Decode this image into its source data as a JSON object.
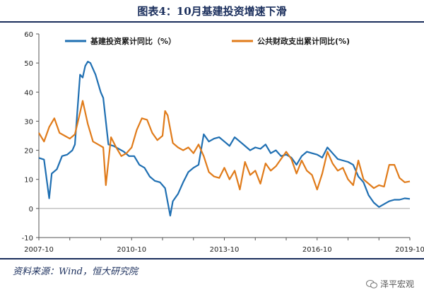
{
  "header": {
    "title": "图表4：10月基建投资增速下滑"
  },
  "footer": {
    "source": "资料来源：Wind，恒大研究院",
    "watermark": "泽平宏观"
  },
  "colors": {
    "series_blue": "#1f6fb2",
    "series_orange": "#e07b1a",
    "frame": "#1a2e5c"
  },
  "chart_data": {
    "type": "line",
    "ylim": [
      -10,
      60
    ],
    "yticks": [
      -10,
      0,
      10,
      20,
      30,
      40,
      50,
      60
    ],
    "xtick_labels": [
      "2007-10",
      "2010-10",
      "2013-10",
      "2016-10",
      "2019-10"
    ],
    "x_range": [
      "2007-10",
      "2019-10"
    ],
    "series": [
      {
        "name": "基建投资累计同比（%）",
        "points": [
          [
            "2007-10",
            17.4
          ],
          [
            "2007-12",
            16.8
          ],
          [
            "2008-02",
            3.5
          ],
          [
            "2008-03",
            12.0
          ],
          [
            "2008-05",
            13.5
          ],
          [
            "2008-07",
            18.0
          ],
          [
            "2008-09",
            18.5
          ],
          [
            "2008-11",
            20.0
          ],
          [
            "2008-12",
            22.0
          ],
          [
            "2009-02",
            46.0
          ],
          [
            "2009-03",
            45.0
          ],
          [
            "2009-04",
            49.0
          ],
          [
            "2009-05",
            50.5
          ],
          [
            "2009-06",
            50.0
          ],
          [
            "2009-08",
            46.0
          ],
          [
            "2009-10",
            40.0
          ],
          [
            "2009-11",
            38.0
          ],
          [
            "2010-01",
            22.0
          ],
          [
            "2010-03",
            21.5
          ],
          [
            "2010-05",
            20.5
          ],
          [
            "2010-07",
            19.5
          ],
          [
            "2010-09",
            18.0
          ],
          [
            "2010-11",
            18.0
          ],
          [
            "2011-01",
            15.0
          ],
          [
            "2011-03",
            14.0
          ],
          [
            "2011-05",
            11.0
          ],
          [
            "2011-07",
            9.5
          ],
          [
            "2011-09",
            9.0
          ],
          [
            "2011-11",
            7.0
          ],
          [
            "2012-01",
            -2.5
          ],
          [
            "2012-02",
            2.5
          ],
          [
            "2012-04",
            5.0
          ],
          [
            "2012-06",
            9.0
          ],
          [
            "2012-08",
            12.5
          ],
          [
            "2012-10",
            14.0
          ],
          [
            "2012-12",
            15.0
          ],
          [
            "2013-02",
            25.5
          ],
          [
            "2013-04",
            23.0
          ],
          [
            "2013-06",
            24.0
          ],
          [
            "2013-08",
            24.5
          ],
          [
            "2013-10",
            23.0
          ],
          [
            "2013-12",
            21.5
          ],
          [
            "2014-02",
            24.5
          ],
          [
            "2014-04",
            23.0
          ],
          [
            "2014-06",
            21.5
          ],
          [
            "2014-08",
            20.0
          ],
          [
            "2014-10",
            21.0
          ],
          [
            "2014-12",
            20.5
          ],
          [
            "2015-02",
            22.0
          ],
          [
            "2015-04",
            19.0
          ],
          [
            "2015-06",
            20.0
          ],
          [
            "2015-08",
            18.0
          ],
          [
            "2015-10",
            18.5
          ],
          [
            "2015-12",
            17.5
          ],
          [
            "2016-02",
            15.0
          ],
          [
            "2016-04",
            18.0
          ],
          [
            "2016-06",
            19.5
          ],
          [
            "2016-08",
            19.0
          ],
          [
            "2016-10",
            18.5
          ],
          [
            "2016-12",
            17.5
          ],
          [
            "2017-02",
            21.0
          ],
          [
            "2017-04",
            19.0
          ],
          [
            "2017-06",
            17.0
          ],
          [
            "2017-08",
            16.5
          ],
          [
            "2017-10",
            16.0
          ],
          [
            "2017-12",
            15.0
          ],
          [
            "2018-02",
            11.0
          ],
          [
            "2018-04",
            9.0
          ],
          [
            "2018-06",
            4.5
          ],
          [
            "2018-08",
            2.0
          ],
          [
            "2018-10",
            0.5
          ],
          [
            "2018-12",
            1.5
          ],
          [
            "2019-02",
            2.5
          ],
          [
            "2019-04",
            3.0
          ],
          [
            "2019-06",
            3.0
          ],
          [
            "2019-08",
            3.5
          ],
          [
            "2019-10",
            3.3
          ]
        ]
      },
      {
        "name": "公共财政支出累计同比(%)",
        "points": [
          [
            "2007-10",
            26.0
          ],
          [
            "2007-12",
            23.0
          ],
          [
            "2008-02",
            28.0
          ],
          [
            "2008-04",
            31.0
          ],
          [
            "2008-06",
            26.0
          ],
          [
            "2008-08",
            25.0
          ],
          [
            "2008-10",
            24.0
          ],
          [
            "2008-12",
            25.5
          ],
          [
            "2009-02",
            33.0
          ],
          [
            "2009-03",
            37.0
          ],
          [
            "2009-05",
            29.0
          ],
          [
            "2009-07",
            23.0
          ],
          [
            "2009-09",
            22.0
          ],
          [
            "2009-11",
            21.0
          ],
          [
            "2009-12",
            8.0
          ],
          [
            "2010-02",
            24.5
          ],
          [
            "2010-04",
            21.0
          ],
          [
            "2010-06",
            18.0
          ],
          [
            "2010-08",
            19.0
          ],
          [
            "2010-10",
            21.0
          ],
          [
            "2010-12",
            27.0
          ],
          [
            "2011-02",
            31.0
          ],
          [
            "2011-04",
            30.5
          ],
          [
            "2011-06",
            26.0
          ],
          [
            "2011-08",
            23.5
          ],
          [
            "2011-10",
            25.0
          ],
          [
            "2011-11",
            33.5
          ],
          [
            "2011-12",
            32.0
          ],
          [
            "2012-02",
            22.5
          ],
          [
            "2012-04",
            21.0
          ],
          [
            "2012-06",
            20.0
          ],
          [
            "2012-08",
            21.0
          ],
          [
            "2012-10",
            19.0
          ],
          [
            "2012-12",
            22.0
          ],
          [
            "2013-02",
            18.0
          ],
          [
            "2013-04",
            12.5
          ],
          [
            "2013-06",
            11.0
          ],
          [
            "2013-08",
            10.5
          ],
          [
            "2013-10",
            14.0
          ],
          [
            "2013-12",
            10.0
          ],
          [
            "2014-02",
            13.0
          ],
          [
            "2014-04",
            6.5
          ],
          [
            "2014-06",
            16.0
          ],
          [
            "2014-08",
            11.5
          ],
          [
            "2014-10",
            13.0
          ],
          [
            "2014-12",
            8.5
          ],
          [
            "2015-02",
            15.5
          ],
          [
            "2015-04",
            13.0
          ],
          [
            "2015-06",
            14.5
          ],
          [
            "2015-08",
            17.0
          ],
          [
            "2015-10",
            19.5
          ],
          [
            "2015-12",
            17.0
          ],
          [
            "2016-02",
            12.0
          ],
          [
            "2016-04",
            16.5
          ],
          [
            "2016-06",
            13.0
          ],
          [
            "2016-08",
            11.5
          ],
          [
            "2016-10",
            6.5
          ],
          [
            "2016-12",
            12.0
          ],
          [
            "2017-02",
            19.5
          ],
          [
            "2017-04",
            15.5
          ],
          [
            "2017-06",
            13.0
          ],
          [
            "2017-08",
            14.0
          ],
          [
            "2017-10",
            10.0
          ],
          [
            "2017-12",
            8.0
          ],
          [
            "2018-02",
            16.5
          ],
          [
            "2018-04",
            10.0
          ],
          [
            "2018-06",
            8.5
          ],
          [
            "2018-08",
            7.0
          ],
          [
            "2018-10",
            8.0
          ],
          [
            "2018-12",
            7.5
          ],
          [
            "2019-02",
            15.0
          ],
          [
            "2019-04",
            15.0
          ],
          [
            "2019-06",
            10.5
          ],
          [
            "2019-08",
            9.0
          ],
          [
            "2019-10",
            9.3
          ]
        ]
      }
    ]
  }
}
